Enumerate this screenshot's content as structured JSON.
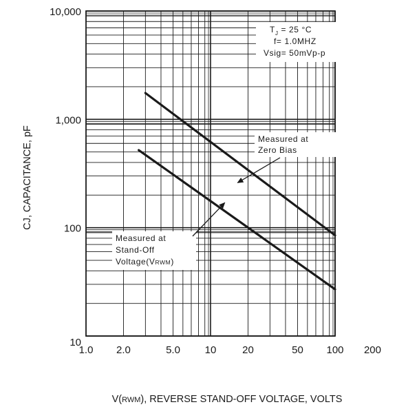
{
  "chart_data": {
    "type": "line",
    "title": "",
    "xlabel": "V(RWM), REVERSE STAND-OFF VOLTAGE, VOLTS",
    "xlabel_parts": {
      "prefix": "V(",
      "sub": "RWM",
      "suffix": "), REVERSE STAND-OFF VOLTAGE, VOLTS"
    },
    "ylabel": "CJ, CAPACITANCE, pF",
    "xscale": "log",
    "yscale": "log",
    "xlim": [
      1.0,
      200
    ],
    "ylim": [
      10,
      10000
    ],
    "grid": true,
    "x_ticks": [
      {
        "value": 1.0,
        "label": "1.0"
      },
      {
        "value": 2.0,
        "label": "2.0"
      },
      {
        "value": 5.0,
        "label": "5.0"
      },
      {
        "value": 10,
        "label": "10"
      },
      {
        "value": 20,
        "label": "20"
      },
      {
        "value": 50,
        "label": "50"
      },
      {
        "value": 100,
        "label": "100"
      },
      {
        "value": 200,
        "label": "200"
      }
    ],
    "y_ticks": [
      {
        "value": 10,
        "label": "10"
      },
      {
        "value": 100,
        "label": "100"
      },
      {
        "value": 1000,
        "label": "1,000"
      },
      {
        "value": 10000,
        "label": "10,000"
      }
    ],
    "series": [
      {
        "name": "Measured at Zero Bias",
        "x": [
          3.0,
          100
        ],
        "y": [
          1750,
          85
        ]
      },
      {
        "name": "Measured at Stand-Off Voltage (VRWM)",
        "x": [
          2.65,
          100
        ],
        "y": [
          520,
          27
        ]
      }
    ],
    "annotations": {
      "conditions": {
        "lines": [
          {
            "id": "tj",
            "prefix": "T",
            "sub": "J",
            "suffix": " = 25 °C"
          },
          {
            "id": "freq",
            "text": "f= 1.0MHZ"
          },
          {
            "id": "vsig",
            "text": "Vsig= 50mVp-p"
          }
        ]
      },
      "zero_bias": {
        "lines": [
          "Measured at",
          "Zero Bias"
        ],
        "arrow_to": {
          "x": 16.5,
          "y": 260
        }
      },
      "standoff": {
        "lines": [
          "Measured at",
          "Stand-Off"
        ],
        "line3": {
          "prefix": "Voltage(V",
          "sub": "RWM",
          "suffix": ")"
        },
        "arrow_to": {
          "x": 13,
          "y": 170
        }
      }
    },
    "colors": {
      "line": "#1a1a1a",
      "grid": "#1a1a1a",
      "background": "#ffffff"
    }
  }
}
